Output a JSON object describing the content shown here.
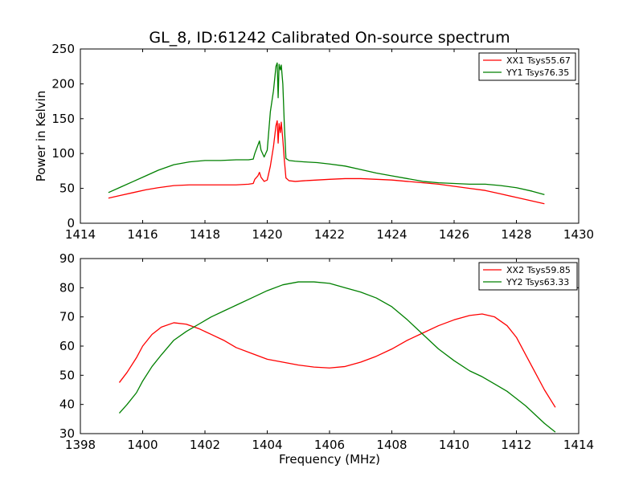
{
  "figure": {
    "title": "GL_8, ID:61242 Calibrated On-source spectrum"
  },
  "chart_data": [
    {
      "type": "line",
      "title": "GL_8, ID:61242 Calibrated On-source spectrum",
      "xlabel": "",
      "ylabel": "Power in Kelvin",
      "xlim": [
        1414,
        1430
      ],
      "ylim": [
        0,
        250
      ],
      "xticks": [
        1414,
        1416,
        1418,
        1420,
        1422,
        1424,
        1426,
        1428,
        1430
      ],
      "yticks": [
        0,
        50,
        100,
        150,
        200,
        250
      ],
      "legend_position": "top-right",
      "grid": false,
      "series": [
        {
          "name": "XX1 Tsys55.67",
          "color": "#ff0000",
          "x": [
            1414.9,
            1415.3,
            1415.7,
            1416.1,
            1416.5,
            1417.0,
            1417.5,
            1418.0,
            1418.5,
            1419.0,
            1419.4,
            1419.55,
            1419.6,
            1419.7,
            1419.75,
            1419.8,
            1419.9,
            1420.0,
            1420.1,
            1420.2,
            1420.28,
            1420.32,
            1420.35,
            1420.38,
            1420.42,
            1420.45,
            1420.5,
            1420.55,
            1420.6,
            1420.7,
            1420.9,
            1421.2,
            1421.6,
            1422.0,
            1422.5,
            1423.0,
            1423.5,
            1424.0,
            1424.5,
            1425.0,
            1425.5,
            1426.0,
            1426.5,
            1427.0,
            1427.5,
            1428.0,
            1428.5,
            1428.9
          ],
          "y": [
            36,
            40,
            44,
            48,
            51,
            54,
            55,
            55,
            55,
            55,
            56,
            57,
            63,
            68,
            73,
            66,
            60,
            62,
            82,
            110,
            140,
            147,
            115,
            143,
            130,
            145,
            120,
            90,
            65,
            61,
            60,
            61,
            62,
            63,
            64,
            64,
            63,
            62,
            60,
            58,
            56,
            53,
            50,
            47,
            42,
            37,
            32,
            28
          ]
        },
        {
          "name": "YY1 Tsys76.35",
          "color": "#008000",
          "x": [
            1414.9,
            1415.3,
            1415.7,
            1416.1,
            1416.5,
            1417.0,
            1417.5,
            1418.0,
            1418.5,
            1419.0,
            1419.4,
            1419.55,
            1419.6,
            1419.7,
            1419.75,
            1419.8,
            1419.9,
            1420.0,
            1420.1,
            1420.2,
            1420.28,
            1420.32,
            1420.35,
            1420.38,
            1420.42,
            1420.45,
            1420.5,
            1420.55,
            1420.6,
            1420.7,
            1420.9,
            1421.2,
            1421.6,
            1422.0,
            1422.5,
            1423.0,
            1423.5,
            1424.0,
            1424.5,
            1425.0,
            1425.5,
            1426.0,
            1426.5,
            1427.0,
            1427.5,
            1428.0,
            1428.5,
            1428.9
          ],
          "y": [
            44,
            52,
            60,
            68,
            76,
            84,
            88,
            90,
            90,
            91,
            91,
            92,
            100,
            112,
            118,
            105,
            95,
            105,
            160,
            190,
            225,
            230,
            180,
            228,
            220,
            227,
            200,
            140,
            93,
            90,
            89,
            88,
            87,
            85,
            82,
            77,
            72,
            68,
            64,
            60,
            58,
            57,
            56,
            56,
            54,
            51,
            46,
            41
          ]
        }
      ]
    },
    {
      "type": "line",
      "title": "",
      "xlabel": "Frequency (MHz)",
      "ylabel": "",
      "xlim": [
        1398,
        1414
      ],
      "ylim": [
        30,
        90
      ],
      "xticks": [
        1398,
        1400,
        1402,
        1404,
        1406,
        1408,
        1410,
        1412,
        1414
      ],
      "yticks": [
        30,
        40,
        50,
        60,
        70,
        80,
        90
      ],
      "legend_position": "top-right",
      "grid": false,
      "series": [
        {
          "name": "XX2 Tsys59.85",
          "color": "#ff0000",
          "x": [
            1399.25,
            1399.5,
            1399.8,
            1400.0,
            1400.3,
            1400.6,
            1401.0,
            1401.4,
            1401.8,
            1402.2,
            1402.6,
            1403.0,
            1403.5,
            1404.0,
            1404.5,
            1405.0,
            1405.5,
            1406.0,
            1406.5,
            1407.0,
            1407.5,
            1408.0,
            1408.5,
            1409.0,
            1409.5,
            1410.0,
            1410.5,
            1410.9,
            1411.3,
            1411.7,
            1412.0,
            1412.3,
            1412.6,
            1412.9,
            1413.25
          ],
          "y": [
            47.5,
            51,
            56,
            60,
            64,
            66.5,
            68,
            67.5,
            66,
            64,
            62,
            59.5,
            57.5,
            55.5,
            54.5,
            53.5,
            52.8,
            52.5,
            53,
            54.5,
            56.5,
            59,
            62,
            64.5,
            67,
            69,
            70.5,
            71,
            70,
            67,
            63,
            57,
            51,
            45,
            39
          ]
        },
        {
          "name": "YY2 Tsys63.33",
          "color": "#008000",
          "x": [
            1399.25,
            1399.5,
            1399.8,
            1400.0,
            1400.3,
            1400.6,
            1401.0,
            1401.4,
            1401.8,
            1402.2,
            1402.6,
            1403.0,
            1403.5,
            1404.0,
            1404.5,
            1405.0,
            1405.5,
            1406.0,
            1406.5,
            1407.0,
            1407.5,
            1408.0,
            1408.5,
            1409.0,
            1409.5,
            1410.0,
            1410.5,
            1410.9,
            1411.3,
            1411.7,
            1412.0,
            1412.3,
            1412.6,
            1412.9,
            1413.25
          ],
          "y": [
            37,
            40,
            44,
            48,
            53,
            57,
            62,
            65,
            67.5,
            70,
            72,
            74,
            76.5,
            79,
            81,
            82,
            82,
            81.5,
            80,
            78.5,
            76.5,
            73.5,
            69,
            64,
            59,
            55,
            51.5,
            49.5,
            47,
            44.5,
            42,
            39.5,
            36.5,
            33.5,
            30.5
          ]
        }
      ]
    }
  ]
}
